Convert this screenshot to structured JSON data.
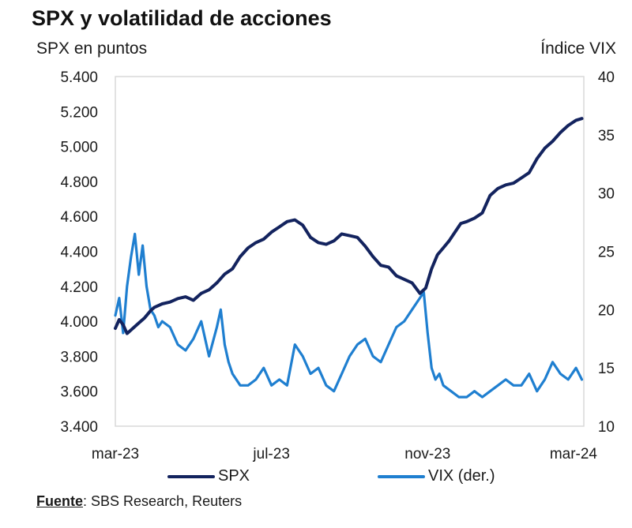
{
  "title": "SPX y volatilidad de acciones",
  "left_axis_title": "SPX en puntos",
  "right_axis_title": "Índice VIX",
  "source_label": "Fuente",
  "source_text": ": SBS Research, Reuters",
  "colors": {
    "spx": "#13235e",
    "vix": "#1f7fd0",
    "frame": "#d9d9d9"
  },
  "chart_data": {
    "type": "line",
    "title": "SPX y volatilidad de acciones",
    "ylabel": "SPX en puntos",
    "y2label": "Índice VIX",
    "ylim": [
      3400,
      5400
    ],
    "y2lim": [
      10,
      40
    ],
    "yticks": [
      "3.400",
      "3.600",
      "3.800",
      "4.000",
      "4.200",
      "4.400",
      "4.600",
      "4.800",
      "5.000",
      "5.200",
      "5.400"
    ],
    "y2ticks": [
      "10",
      "15",
      "20",
      "25",
      "30",
      "35",
      "40"
    ],
    "xticks": [
      "mar-23",
      "jul-23",
      "nov-23",
      "mar-24"
    ],
    "xlim": [
      0,
      12
    ],
    "grid": false,
    "legend_position": "bottom",
    "series": [
      {
        "name": "SPX",
        "axis": "left",
        "x": [
          0,
          0.1,
          0.2,
          0.3,
          0.45,
          0.6,
          0.75,
          0.9,
          1.0,
          1.2,
          1.4,
          1.6,
          1.8,
          2.0,
          2.2,
          2.4,
          2.6,
          2.8,
          3.0,
          3.2,
          3.4,
          3.6,
          3.8,
          4.0,
          4.2,
          4.4,
          4.6,
          4.8,
          5.0,
          5.2,
          5.4,
          5.6,
          5.8,
          6.0,
          6.2,
          6.4,
          6.6,
          6.8,
          7.0,
          7.2,
          7.4,
          7.6,
          7.8,
          7.95,
          8.1,
          8.25,
          8.4,
          8.55,
          8.7,
          8.85,
          9.0,
          9.2,
          9.4,
          9.6,
          9.8,
          10.0,
          10.2,
          10.4,
          10.6,
          10.8,
          11.0,
          11.2,
          11.4,
          11.6,
          11.8,
          11.95
        ],
        "values": [
          3960,
          4010,
          3980,
          3930,
          3960,
          3990,
          4020,
          4060,
          4080,
          4100,
          4110,
          4130,
          4140,
          4120,
          4160,
          4180,
          4220,
          4270,
          4300,
          4370,
          4420,
          4450,
          4470,
          4510,
          4540,
          4570,
          4580,
          4550,
          4480,
          4450,
          4440,
          4460,
          4500,
          4490,
          4480,
          4430,
          4370,
          4320,
          4310,
          4260,
          4240,
          4220,
          4160,
          4190,
          4300,
          4380,
          4420,
          4460,
          4510,
          4560,
          4570,
          4590,
          4620,
          4720,
          4760,
          4780,
          4790,
          4820,
          4850,
          4930,
          4990,
          5030,
          5080,
          5120,
          5150,
          5160
        ]
      },
      {
        "name": "VIX (der.)",
        "axis": "right",
        "x": [
          0,
          0.1,
          0.2,
          0.3,
          0.4,
          0.5,
          0.6,
          0.7,
          0.8,
          0.9,
          1.0,
          1.1,
          1.2,
          1.4,
          1.6,
          1.8,
          2.0,
          2.2,
          2.4,
          2.6,
          2.7,
          2.8,
          2.9,
          3.0,
          3.2,
          3.4,
          3.6,
          3.8,
          4.0,
          4.2,
          4.4,
          4.6,
          4.8,
          5.0,
          5.2,
          5.4,
          5.6,
          5.8,
          6.0,
          6.2,
          6.4,
          6.6,
          6.8,
          7.0,
          7.2,
          7.4,
          7.6,
          7.8,
          7.9,
          8.0,
          8.1,
          8.2,
          8.3,
          8.4,
          8.6,
          8.8,
          9.0,
          9.2,
          9.4,
          9.6,
          9.8,
          10.0,
          10.2,
          10.4,
          10.6,
          10.8,
          11.0,
          11.2,
          11.4,
          11.6,
          11.8,
          11.95
        ],
        "values": [
          19.5,
          21.0,
          18.0,
          22.0,
          24.5,
          26.5,
          23.0,
          25.5,
          22.0,
          20.0,
          19.5,
          18.5,
          19.0,
          18.5,
          17.0,
          16.5,
          17.5,
          19.0,
          16.0,
          18.5,
          20.0,
          17.0,
          15.5,
          14.5,
          13.5,
          13.5,
          14.0,
          15.0,
          13.5,
          14.0,
          13.5,
          17.0,
          16.0,
          14.5,
          15.0,
          13.5,
          13.0,
          14.5,
          16.0,
          17.0,
          17.5,
          16.0,
          15.5,
          17.0,
          18.5,
          19.0,
          20.0,
          21.0,
          21.5,
          18.0,
          15.0,
          14.0,
          14.5,
          13.5,
          13.0,
          12.5,
          12.5,
          13.0,
          12.5,
          13.0,
          13.5,
          14.0,
          13.5,
          13.5,
          14.5,
          13.0,
          14.0,
          15.5,
          14.5,
          14.0,
          15.0,
          14.0
        ]
      }
    ]
  }
}
